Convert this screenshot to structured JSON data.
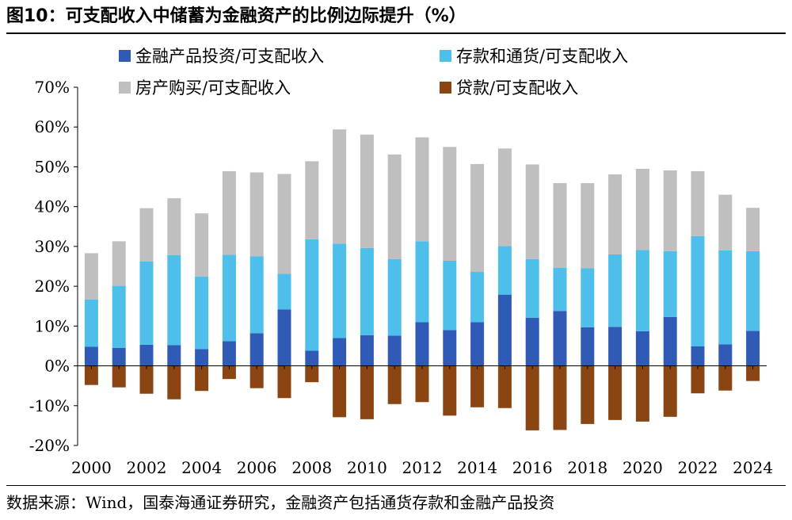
{
  "figure": {
    "title": "图10：可支配收入中储蓄为金融资产的比例边际提升（%）",
    "source": "数据来源：Wind，国泰海通证券研究，金融资产包括通货存款和金融产品投资"
  },
  "colors": {
    "financial": "#2f5bb7",
    "deposits": "#4dbfea",
    "housing": "#bfbfbf",
    "loans": "#8b4513"
  },
  "chart_data": {
    "type": "bar",
    "stacked": true,
    "title": "可支配收入中储蓄为金融资产的比例边际提升（%）",
    "xlabel": "",
    "ylabel": "",
    "ylim": [
      -20,
      70
    ],
    "yticks": [
      -20,
      -10,
      0,
      10,
      20,
      30,
      40,
      50,
      60,
      70
    ],
    "ytick_labels": [
      "-20%",
      "-10%",
      "0%",
      "10%",
      "20%",
      "30%",
      "40%",
      "50%",
      "60%",
      "70%"
    ],
    "categories": [
      "2000",
      "2001",
      "2002",
      "2003",
      "2004",
      "2005",
      "2006",
      "2007",
      "2008",
      "2009",
      "2010",
      "2011",
      "2012",
      "2013",
      "2014",
      "2015",
      "2016",
      "2017",
      "2018",
      "2019",
      "2020",
      "2021",
      "2022",
      "2023",
      "2024"
    ],
    "xtick_labels": [
      "2000",
      "",
      "2002",
      "",
      "2004",
      "",
      "2006",
      "",
      "2008",
      "",
      "2010",
      "",
      "2012",
      "",
      "2014",
      "",
      "2016",
      "",
      "2018",
      "",
      "2020",
      "",
      "2022",
      "",
      "2024"
    ],
    "legend_position": "top",
    "series": [
      {
        "name": "金融产品投资/可支配收入",
        "color_key": "financial",
        "values": [
          4.8,
          4.5,
          5.3,
          5.2,
          4.2,
          6.2,
          8.2,
          14.2,
          3.8,
          7.0,
          7.7,
          7.6,
          11.0,
          9.0,
          11.0,
          17.9,
          12.1,
          13.8,
          9.7,
          9.8,
          8.7,
          12.3,
          4.9,
          5.4,
          8.8
        ]
      },
      {
        "name": "存款和通货/可支配收入",
        "color_key": "deposits",
        "values": [
          11.9,
          15.6,
          20.9,
          22.6,
          18.2,
          21.7,
          19.3,
          8.9,
          28.0,
          23.7,
          21.9,
          19.2,
          20.3,
          17.4,
          12.6,
          12.2,
          14.7,
          10.8,
          14.8,
          18.2,
          20.4,
          16.5,
          27.7,
          23.6,
          20.0
        ]
      },
      {
        "name": "房产购买/可支配收入",
        "color_key": "housing",
        "values": [
          11.6,
          11.2,
          13.4,
          14.3,
          15.9,
          21.0,
          21.1,
          25.1,
          19.6,
          28.7,
          28.5,
          26.3,
          26.1,
          28.6,
          27.1,
          24.5,
          23.8,
          21.3,
          21.4,
          20.1,
          20.4,
          20.3,
          16.3,
          14.0,
          10.9
        ]
      },
      {
        "name": "贷款/可支配收入",
        "color_key": "loans",
        "values": [
          -4.8,
          -5.4,
          -7.0,
          -8.4,
          -6.3,
          -3.3,
          -5.6,
          -8.1,
          -4.1,
          -12.9,
          -13.4,
          -9.6,
          -9.1,
          -12.5,
          -10.4,
          -10.6,
          -16.2,
          -16.1,
          -14.6,
          -13.6,
          -14.0,
          -12.8,
          -6.9,
          -6.2,
          -3.8
        ]
      }
    ]
  }
}
